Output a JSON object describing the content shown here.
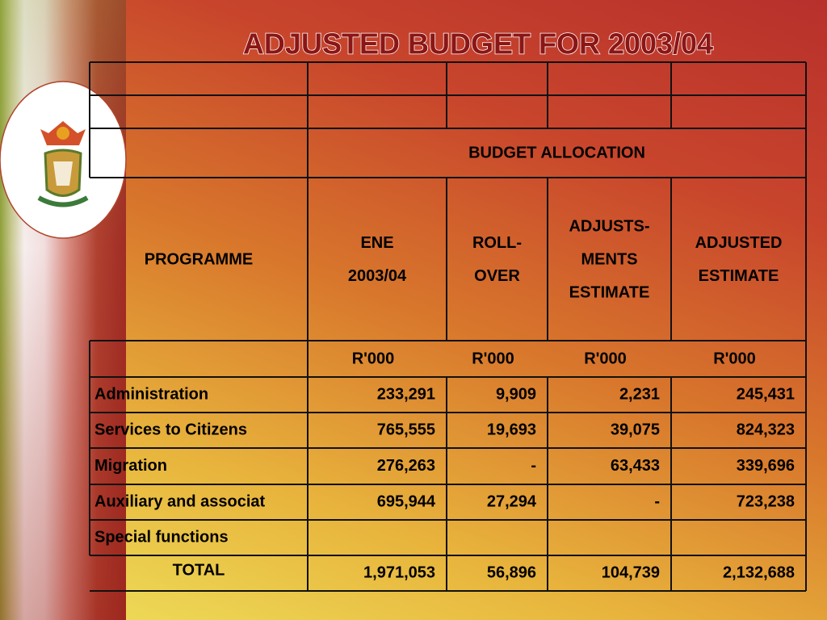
{
  "title": "ADJUSTED BUDGET FOR  2003/04",
  "table": {
    "group_header": "BUDGET ALLOCATION",
    "column_headers": [
      [
        "PROGRAMME"
      ],
      [
        "ENE",
        "2003/04"
      ],
      [
        "ROLL-",
        "OVER"
      ],
      [
        "ADJUSTS-",
        "MENTS",
        "ESTIMATE"
      ],
      [
        "ADJUSTED",
        "ESTIMATE"
      ]
    ],
    "units": [
      "R'000",
      "R'000",
      "R'000",
      "R'000"
    ],
    "rows": [
      [
        "Administration",
        "233,291",
        "9,909",
        "2,231",
        "245,431"
      ],
      [
        "Services to Citizens",
        "765,555",
        "19,693",
        "39,075",
        "824,323"
      ],
      [
        "Migration",
        "276,263",
        "-",
        "63,433",
        "339,696"
      ],
      [
        "Auxiliary and associat",
        "695,944",
        "27,294",
        "-",
        "723,238"
      ],
      [
        "Special functions"
      ],
      [
        "TOTAL",
        "1,971,053",
        "56,896",
        "104,739",
        "2,132,688"
      ]
    ]
  }
}
